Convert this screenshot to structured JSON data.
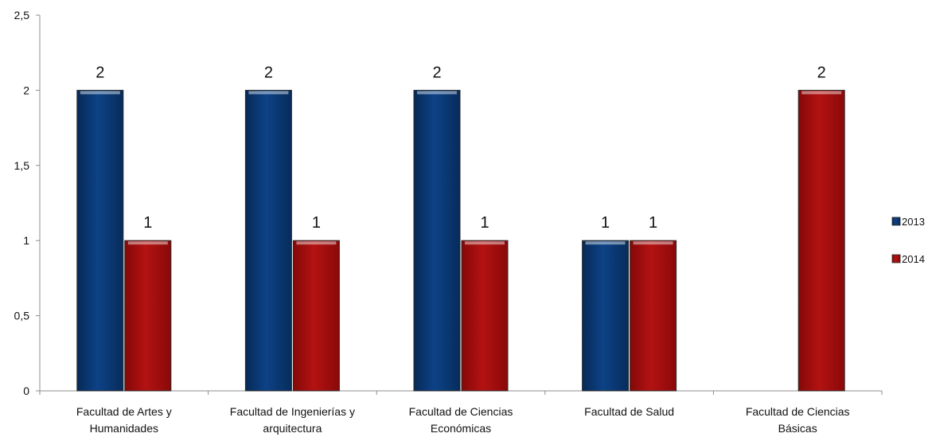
{
  "chart_data": {
    "type": "bar",
    "categories": [
      [
        "Facultad de Artes y",
        "Humanidades"
      ],
      [
        "Facultad de Ingenierías y",
        "arquitectura"
      ],
      [
        "Facultad de Ciencias",
        "Económicas"
      ],
      [
        "Facultad de Salud"
      ],
      [
        "Facultad de Ciencias",
        "Básicas"
      ]
    ],
    "series": [
      {
        "name": "2013",
        "color": "#0b3a73",
        "values": [
          2,
          2,
          2,
          1,
          null
        ]
      },
      {
        "name": "2014",
        "color": "#a50d0d",
        "values": [
          1,
          1,
          1,
          1,
          2
        ]
      }
    ],
    "ylim": [
      0,
      2.5
    ],
    "yticks": [
      "0",
      "0,5",
      "1",
      "1,5",
      "2",
      "2,5"
    ],
    "ytick_values": [
      0,
      0.5,
      1,
      1.5,
      2,
      2.5
    ],
    "grid": false,
    "legend": "right",
    "data_labels": true
  }
}
